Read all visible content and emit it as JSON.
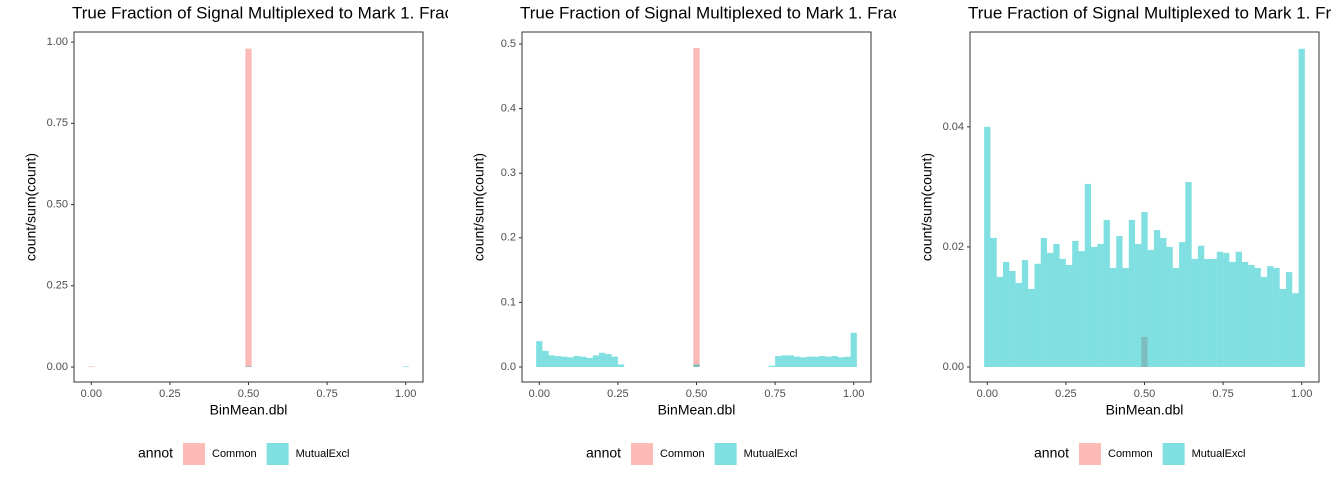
{
  "chart_data": [
    {
      "type": "histogram",
      "title": "True Fraction of Signal Multiplexed to Mark 1. Frac",
      "xlabel": "BinMean.dbl",
      "ylabel": "count/sum(count)",
      "legend_title": "annot",
      "legend_position": "bottom",
      "grid": false,
      "alpha": 0.5,
      "bins": [
        -0.01,
        0.01,
        0.03,
        0.05,
        0.07,
        0.09,
        0.11,
        0.13,
        0.15,
        0.17,
        0.19,
        0.21,
        0.23,
        0.25,
        0.27,
        0.29,
        0.31,
        0.33,
        0.35,
        0.37,
        0.39,
        0.41,
        0.43,
        0.45,
        0.47,
        0.49,
        0.51,
        0.53,
        0.55,
        0.57,
        0.59,
        0.61,
        0.63,
        0.65,
        0.67,
        0.69,
        0.71,
        0.73,
        0.75,
        0.77,
        0.79,
        0.81,
        0.83,
        0.85,
        0.87,
        0.89,
        0.91,
        0.93,
        0.95,
        0.97,
        0.99,
        1.01
      ],
      "series": [
        {
          "name": "Common",
          "color": "#F8766D",
          "values": [
            0.002,
            0,
            0,
            0,
            0,
            0,
            0,
            0,
            0,
            0,
            0,
            0,
            0,
            0,
            0,
            0,
            0,
            0,
            0,
            0,
            0,
            0,
            0,
            0,
            0,
            0.98,
            0,
            0,
            0,
            0,
            0,
            0,
            0,
            0,
            0,
            0,
            0,
            0,
            0,
            0,
            0,
            0,
            0,
            0,
            0,
            0,
            0,
            0,
            0,
            0,
            0
          ]
        },
        {
          "name": "MutualExcl",
          "color": "#00BFC4",
          "values": [
            0,
            0,
            0,
            0,
            0,
            0,
            0,
            0,
            0,
            0,
            0,
            0,
            0,
            0,
            0,
            0,
            0,
            0,
            0,
            0,
            0,
            0,
            0,
            0,
            0,
            0.002,
            0,
            0,
            0,
            0,
            0,
            0,
            0,
            0,
            0,
            0,
            0,
            0,
            0,
            0,
            0,
            0,
            0,
            0,
            0,
            0,
            0,
            0,
            0,
            0,
            0.002
          ]
        }
      ],
      "xlim": [
        -0.055,
        1.055
      ],
      "xticks": [
        {
          "value": 0,
          "label": "0.00"
        },
        {
          "value": 0.25,
          "label": "0.25"
        },
        {
          "value": 0.5,
          "label": "0.50"
        },
        {
          "value": 0.75,
          "label": "0.75"
        },
        {
          "value": 1,
          "label": "1.00"
        }
      ],
      "ylim": [
        -0.046,
        1.031
      ],
      "yticks": [
        {
          "value": 0,
          "label": "0.00"
        },
        {
          "value": 0.25,
          "label": "0.25"
        },
        {
          "value": 0.5,
          "label": "0.50"
        },
        {
          "value": 0.75,
          "label": "0.75"
        },
        {
          "value": 1,
          "label": "1.00"
        }
      ]
    },
    {
      "type": "histogram",
      "title": "True Fraction of Signal Multiplexed to Mark 1. Frac",
      "xlabel": "BinMean.dbl",
      "ylabel": "count/sum(count)",
      "legend_title": "annot",
      "legend_position": "bottom",
      "grid": false,
      "alpha": 0.5,
      "bins": [
        -0.01,
        0.01,
        0.03,
        0.05,
        0.07,
        0.09,
        0.11,
        0.13,
        0.15,
        0.17,
        0.19,
        0.21,
        0.23,
        0.25,
        0.27,
        0.29,
        0.31,
        0.33,
        0.35,
        0.37,
        0.39,
        0.41,
        0.43,
        0.45,
        0.47,
        0.49,
        0.51,
        0.53,
        0.55,
        0.57,
        0.59,
        0.61,
        0.63,
        0.65,
        0.67,
        0.69,
        0.71,
        0.73,
        0.75,
        0.77,
        0.79,
        0.81,
        0.83,
        0.85,
        0.87,
        0.89,
        0.91,
        0.93,
        0.95,
        0.97,
        0.99,
        1.01
      ],
      "series": [
        {
          "name": "Common",
          "color": "#F8766D",
          "values": [
            0,
            0,
            0,
            0,
            0,
            0,
            0,
            0,
            0,
            0,
            0,
            0,
            0,
            0,
            0,
            0,
            0,
            0,
            0,
            0,
            0,
            0,
            0,
            0,
            0,
            0.494,
            0,
            0,
            0,
            0,
            0,
            0,
            0,
            0,
            0,
            0,
            0,
            0,
            0,
            0,
            0,
            0,
            0,
            0,
            0,
            0,
            0,
            0,
            0,
            0,
            0
          ]
        },
        {
          "name": "MutualExcl",
          "color": "#00BFC4",
          "values": [
            0.04,
            0.025,
            0.018,
            0.017,
            0.016,
            0.015,
            0.017,
            0.016,
            0.014,
            0.018,
            0.022,
            0.02,
            0.016,
            0.004,
            0,
            0,
            0,
            0,
            0,
            0,
            0,
            0,
            0,
            0,
            0,
            0.004,
            0,
            0,
            0,
            0,
            0,
            0,
            0,
            0,
            0,
            0,
            0,
            0.002,
            0.017,
            0.018,
            0.018,
            0.016,
            0.015,
            0.016,
            0.016,
            0.017,
            0.016,
            0.017,
            0.015,
            0.016,
            0.053
          ]
        }
      ],
      "xlim": [
        -0.055,
        1.055
      ],
      "xticks": [
        {
          "value": 0,
          "label": "0.00"
        },
        {
          "value": 0.25,
          "label": "0.25"
        },
        {
          "value": 0.5,
          "label": "0.50"
        },
        {
          "value": 0.75,
          "label": "0.75"
        },
        {
          "value": 1,
          "label": "1.00"
        }
      ],
      "ylim": [
        -0.0232,
        0.5186
      ],
      "yticks": [
        {
          "value": 0,
          "label": "0.0"
        },
        0.1,
        0.2,
        0.3,
        0.4,
        0.5
      ]
    },
    {
      "type": "histogram",
      "title": "True Fraction of Signal Multiplexed to Mark 1. Fr",
      "xlabel": "BinMean.dbl",
      "ylabel": "count/sum(count)",
      "legend_title": "annot",
      "legend_position": "bottom",
      "grid": false,
      "alpha": 0.5,
      "bins": [
        -0.01,
        0.01,
        0.03,
        0.05,
        0.07,
        0.09,
        0.11,
        0.13,
        0.15,
        0.17,
        0.19,
        0.21,
        0.23,
        0.25,
        0.27,
        0.29,
        0.31,
        0.33,
        0.35,
        0.37,
        0.39,
        0.41,
        0.43,
        0.45,
        0.47,
        0.49,
        0.51,
        0.53,
        0.55,
        0.57,
        0.59,
        0.61,
        0.63,
        0.65,
        0.67,
        0.69,
        0.71,
        0.73,
        0.75,
        0.77,
        0.79,
        0.81,
        0.83,
        0.85,
        0.87,
        0.89,
        0.91,
        0.93,
        0.95,
        0.97,
        0.99,
        1.01
      ],
      "series": [
        {
          "name": "Common",
          "color": "#F8766D",
          "values": [
            0,
            0,
            0,
            0,
            0,
            0,
            0,
            0,
            0,
            0,
            0,
            0,
            0,
            0,
            0,
            0,
            0,
            0,
            0,
            0,
            0,
            0,
            0,
            0,
            0,
            0.005,
            0,
            0,
            0,
            0,
            0,
            0,
            0,
            0,
            0,
            0,
            0,
            0,
            0,
            0,
            0,
            0,
            0,
            0,
            0,
            0,
            0,
            0,
            0,
            0,
            0
          ]
        },
        {
          "name": "MutualExcl",
          "color": "#00BFC4",
          "values": [
            0.04,
            0.0215,
            0.015,
            0.0175,
            0.016,
            0.014,
            0.0178,
            0.013,
            0.0172,
            0.0215,
            0.019,
            0.0205,
            0.018,
            0.017,
            0.021,
            0.0193,
            0.0305,
            0.02,
            0.0205,
            0.0245,
            0.0165,
            0.0218,
            0.0165,
            0.0245,
            0.0205,
            0.0258,
            0.0195,
            0.0228,
            0.0215,
            0.02,
            0.0165,
            0.0208,
            0.0308,
            0.018,
            0.0202,
            0.018,
            0.018,
            0.0192,
            0.019,
            0.0175,
            0.0192,
            0.0175,
            0.017,
            0.0165,
            0.015,
            0.0168,
            0.0165,
            0.013,
            0.0158,
            0.0123,
            0.053
          ]
        }
      ],
      "xlim": [
        -0.055,
        1.055
      ],
      "xticks": [
        {
          "value": 0,
          "label": "0.00"
        },
        {
          "value": 0.25,
          "label": "0.25"
        },
        {
          "value": 0.5,
          "label": "0.50"
        },
        {
          "value": 0.75,
          "label": "0.75"
        },
        {
          "value": 1,
          "label": "1.00"
        }
      ],
      "ylim": [
        -0.0025,
        0.0558
      ],
      "yticks": [
        {
          "value": 0,
          "label": "0.00"
        },
        {
          "value": 0.02,
          "label": "0.02"
        },
        {
          "value": 0.04,
          "label": "0.04"
        }
      ]
    }
  ]
}
